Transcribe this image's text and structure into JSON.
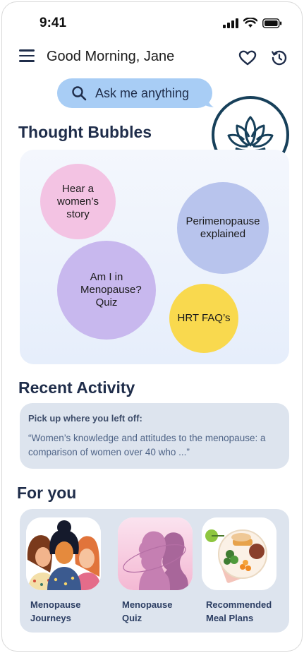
{
  "status": {
    "time": "9:41"
  },
  "header": {
    "greeting": "Good Morning, Jane"
  },
  "ask": {
    "label": "Ask me anything"
  },
  "thought_bubbles": {
    "title": "Thought Bubbles",
    "items": [
      {
        "label": "Hear a women’s story",
        "color": "#f3c3e3"
      },
      {
        "label": "Perimenopause explained",
        "color": "#b8c4ed"
      },
      {
        "label": "Am I in Menopause? Quiz",
        "color": "#c8b8ee"
      },
      {
        "label": "HRT FAQ’s",
        "color": "#f9d94e"
      }
    ]
  },
  "recent_activity": {
    "title": "Recent Activity",
    "heading": "Pick up where you left off:",
    "quote": "“Women’s knowledge and attitudes to the menopause: a comparison of women over 40 who ...”"
  },
  "for_you": {
    "title": "For you",
    "cards": [
      {
        "label": "Menopause Journeys"
      },
      {
        "label": "Menopause Quiz"
      },
      {
        "label": "Recommended Meal Plans"
      }
    ]
  },
  "colors": {
    "accent_blue": "#a8cdf5",
    "navy_text": "#1f2d4a",
    "card_bg": "#dde4ee",
    "logo_ring": "#17405a"
  },
  "icons": [
    "signal-icon",
    "wifi-icon",
    "battery-icon",
    "menu-icon",
    "heart-icon",
    "history-icon",
    "search-icon",
    "lotus-logo"
  ]
}
